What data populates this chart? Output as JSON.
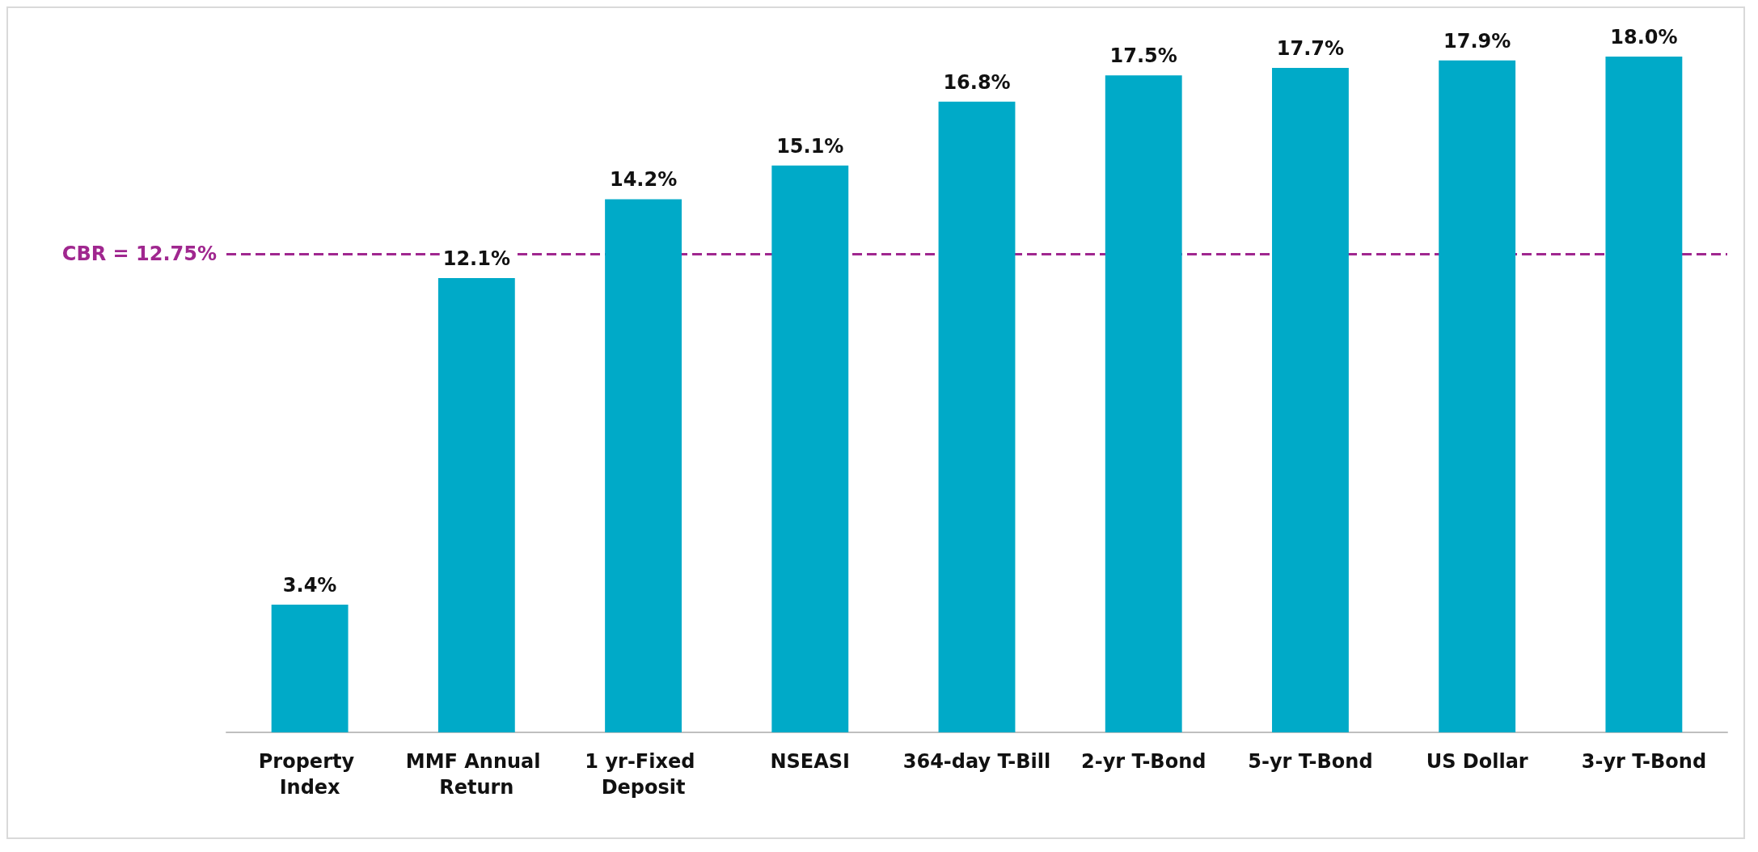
{
  "chart_data": {
    "type": "bar",
    "categories": [
      "Property Index",
      "MMF Annual Return",
      "1 yr-Fixed Deposit",
      "NSEASI",
      "364-day T-Bill",
      "2-yr T-Bond",
      "5-yr T-Bond",
      "US Dollar",
      "3-yr T-Bond"
    ],
    "values": [
      3.4,
      12.1,
      14.2,
      15.1,
      16.8,
      17.5,
      17.7,
      17.9,
      18.0
    ],
    "value_labels": [
      "3.4%",
      "12.1%",
      "14.2%",
      "15.1%",
      "16.8%",
      "17.5%",
      "17.7%",
      "17.9%",
      "18.0%"
    ],
    "color": "#00aac8",
    "tick_labels": "x",
    "ref_lines": [
      {
        "axis": "y",
        "value": 12.75,
        "label": "CBR = 12.75%",
        "color": "#a0278f",
        "line_style": "dashed"
      }
    ]
  }
}
